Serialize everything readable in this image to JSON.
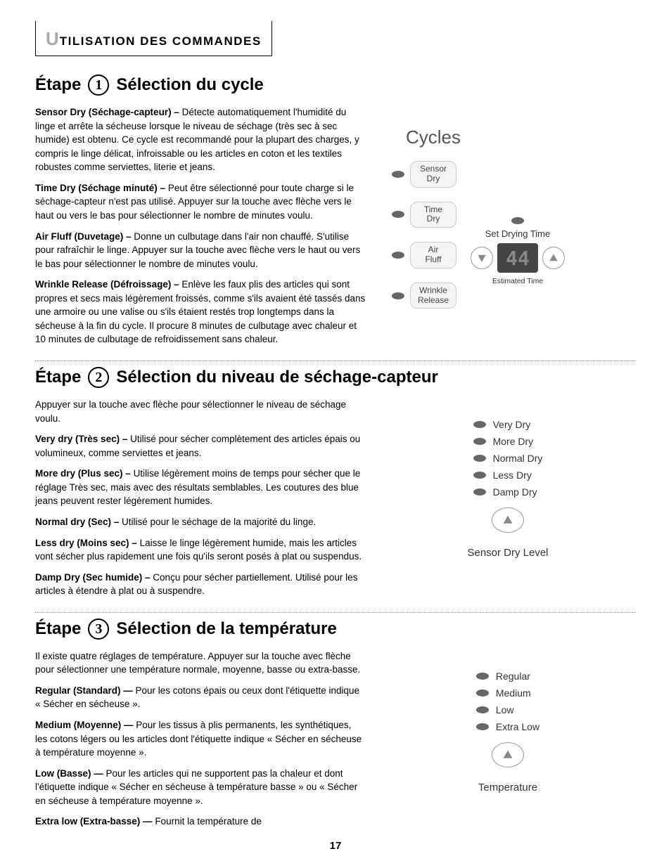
{
  "header": {
    "firstLetter": "U",
    "rest": "TILISATION DES COMMANDES"
  },
  "sections": [
    {
      "stepWord": "Étape",
      "stepNum": "1",
      "title": "Sélection du cycle",
      "paras": [
        {
          "b": "Sensor Dry (Séchage-capteur)  –",
          "t": " Détecte automatiquement l'humidité du linge et arrête la sécheuse lorsque le niveau de séchage (très sec à sec humide) est obtenu. Ce cycle est recommandé pour la plupart des charges, y compris le linge délicat, infroissable ou les articles en coton et les textiles robustes comme serviettes, literie et jeans."
        },
        {
          "b": "Time Dry (Séchage minuté)  –",
          "t": " Peut être sélectionné pour toute charge si le séchage-capteur n'est pas utilisé. Appuyer sur la touche avec flèche vers le haut ou vers le bas pour sélectionner le nombre de minutes voulu."
        },
        {
          "b": "Air Fluff (Duvetage) –",
          "t": " Donne un culbutage dans l'air non chauffé. S'utilise pour rafraîchir le linge. Appuyer sur la touche avec flèche vers le haut ou vers le bas pour sélectionner le nombre de minutes voulu."
        },
        {
          "b": "Wrinkle Release (Défroissage)  –",
          "t": " Enlève les faux plis des articles qui sont propres et secs mais légèrement froissés, comme s'ils avaient été tassés dans une armoire ou une valise ou s'ils étaient restés trop longtemps dans la sécheuse à la fin du cycle. Il procure 8 minutes de culbutage avec chaleur et 10 minutes de culbutage de refroidissement sans chaleur."
        }
      ]
    },
    {
      "stepWord": "Étape",
      "stepNum": "2",
      "title": "Sélection du niveau de séchage-capteur",
      "paras": [
        {
          "b": "",
          "t": "Appuyer sur la touche avec flèche pour sélectionner le niveau de séchage voulu."
        },
        {
          "b": "Very dry (Très sec)  –",
          "t": " Utilisé pour sécher complètement des articles épais ou volumineux, comme serviettes et jeans."
        },
        {
          "b": "More dry (Plus sec)  –",
          "t": " Utilise légèrement moins de temps pour sécher que le réglage Très sec, mais avec des résultats semblables. Les coutures des blue jeans peuvent rester légèrement humides."
        },
        {
          "b": "Normal dry (Sec) –",
          "t": " Utilisé pour le séchage de la majorité du linge."
        },
        {
          "b": "Less dry (Moins sec)  –",
          "t": " Laisse le linge légèrement humide, mais les articles vont sécher plus rapidement une fois qu'ils seront posés à plat ou suspendus."
        },
        {
          "b": "Damp Dry (Sec humide)  –",
          "t": " Conçu pour sécher partiellement. Utilisé pour les articles à étendre à plat ou à suspendre."
        }
      ]
    },
    {
      "stepWord": "Étape",
      "stepNum": "3",
      "title": "Sélection de la température",
      "paras": [
        {
          "b": "",
          "t": "Il existe quatre réglages de température. Appuyer sur la touche avec flèche pour sélectionner une température normale, moyenne, basse ou extra-basse."
        },
        {
          "b": "Regular (Standard) —",
          "t": " Pour les cotons épais ou ceux dont l'étiquette indique « Sécher en sécheuse »."
        },
        {
          "b": "Medium (Moyenne) —",
          "t": " Pour les tissus à plis permanents, les synthétiques, les cotons légers ou les articles dont l'étiquette indique « Sécher en sécheuse à température moyenne »."
        },
        {
          "b": "Low (Basse) —",
          "t": " Pour les articles qui ne supportent pas la chaleur et dont l'étiquette indique « Sécher en sécheuse à température basse » ou « Sécher en sécheuse à température moyenne »."
        },
        {
          "b": "Extra low (Extra-basse) —",
          "t": " Fournit la température de"
        }
      ]
    }
  ],
  "fig1": {
    "title": "Cycles",
    "items": [
      "Sensor\nDry",
      "Time\nDry",
      "Air\nFluff",
      "Wrinkle\nRelease"
    ],
    "setLabel": "Set Drying Time",
    "display": "44",
    "estLabel": "Estimated Time",
    "colors": {
      "led": "#666666",
      "btnBg": "#f4f4f4",
      "displayBg": "#444444",
      "displayFg": "#888888"
    }
  },
  "fig2": {
    "items": [
      "Very Dry",
      "More Dry",
      "Normal Dry",
      "Less Dry",
      "Damp Dry"
    ],
    "caption": "Sensor Dry Level"
  },
  "fig3": {
    "items": [
      "Regular",
      "Medium",
      "Low",
      "Extra Low"
    ],
    "caption": "Temperature"
  },
  "pageNumber": "17"
}
